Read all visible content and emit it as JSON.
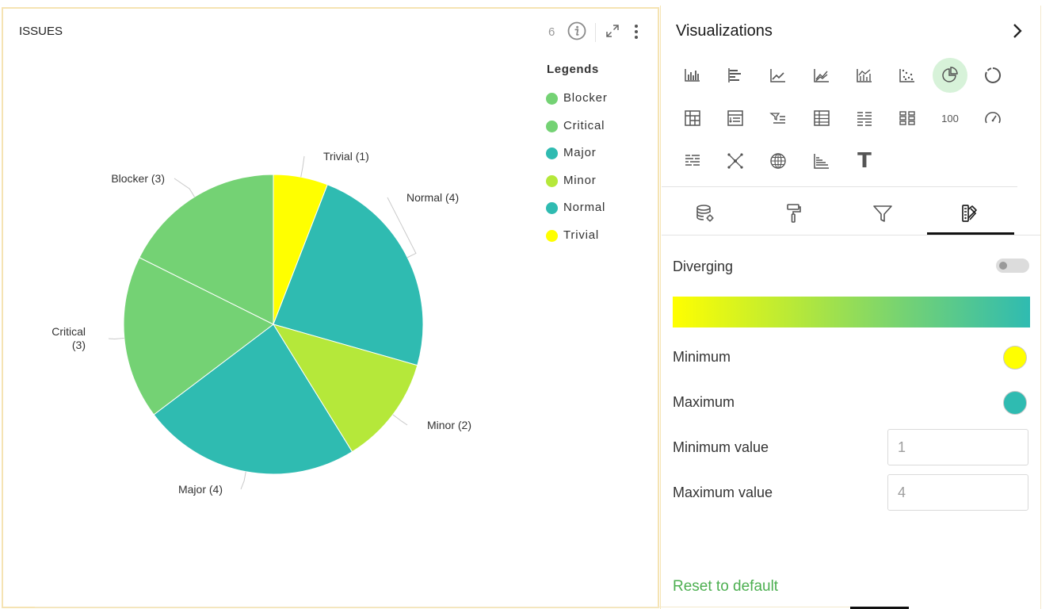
{
  "widget": {
    "title": "ISSUES",
    "count": "6",
    "legend_title": "Legends",
    "legend": [
      {
        "label": "Blocker",
        "color": "#74d274"
      },
      {
        "label": "Critical",
        "color": "#74d274"
      },
      {
        "label": "Major",
        "color": "#2fbbb1"
      },
      {
        "label": "Minor",
        "color": "#b5e83a"
      },
      {
        "label": "Normal",
        "color": "#2fbbb1"
      },
      {
        "label": "Trivial",
        "color": "#ffff00"
      }
    ],
    "icons": {
      "info": "info-icon",
      "expand": "expand-icon",
      "more": "more-vertical-icon"
    }
  },
  "chart_data": {
    "type": "pie",
    "slices": [
      {
        "label": "Trivial",
        "value": 1,
        "data_label": "Trivial (1)",
        "color": "#ffff00"
      },
      {
        "label": "Normal",
        "value": 4,
        "data_label": "Normal (4)",
        "color": "#2fbbb1"
      },
      {
        "label": "Minor",
        "value": 2,
        "data_label": "Minor (2)",
        "color": "#b5e83a"
      },
      {
        "label": "Major",
        "value": 4,
        "data_label": "Major (4)",
        "color": "#2fbbb1"
      },
      {
        "label": "Critical",
        "value": 3,
        "data_label_lines": [
          "Critical",
          "(3)"
        ],
        "color": "#74d274"
      },
      {
        "label": "Blocker",
        "value": 3,
        "data_label": "Blocker (3)",
        "color": "#74d274"
      }
    ],
    "legend_position": "right"
  },
  "panel": {
    "title": "Visualizations",
    "viz_types": [
      {
        "icon": "column-chart-icon"
      },
      {
        "icon": "bar-chart-icon"
      },
      {
        "icon": "line-chart-icon"
      },
      {
        "icon": "area-chart-icon"
      },
      {
        "icon": "combo-chart-icon"
      },
      {
        "icon": "scatter-chart-icon"
      },
      {
        "icon": "pie-chart-icon",
        "active": true
      },
      {
        "icon": "donut-chart-icon"
      },
      {
        "icon": "pivot-table-icon"
      },
      {
        "icon": "drill-table-icon"
      },
      {
        "icon": "filter-list-icon"
      },
      {
        "icon": "table-icon"
      },
      {
        "icon": "detail-table-icon"
      },
      {
        "icon": "tiles-icon"
      },
      {
        "icon": "number-icon",
        "text": "100"
      },
      {
        "icon": "gauge-icon"
      },
      {
        "icon": "heatmap-icon"
      },
      {
        "icon": "network-icon"
      },
      {
        "icon": "globe-map-icon"
      },
      {
        "icon": "histogram-icon"
      },
      {
        "icon": "text-icon",
        "text": "T"
      }
    ],
    "tabs": [
      {
        "icon": "database-settings-icon"
      },
      {
        "icon": "paint-roller-icon"
      },
      {
        "icon": "filter-icon"
      },
      {
        "icon": "color-palette-icon",
        "active": true
      }
    ],
    "diverging_label": "Diverging",
    "diverging_on": false,
    "gradient_colors": [
      "#ffff00",
      "#2fbbb1"
    ],
    "minimum_label": "Minimum",
    "minimum_color": "#ffff00",
    "maximum_label": "Maximum",
    "maximum_color": "#2fbbb1",
    "min_value_label": "Minimum value",
    "min_value_placeholder": "1",
    "max_value_label": "Maximum value",
    "max_value_placeholder": "4",
    "reset_label": "Reset to default"
  }
}
